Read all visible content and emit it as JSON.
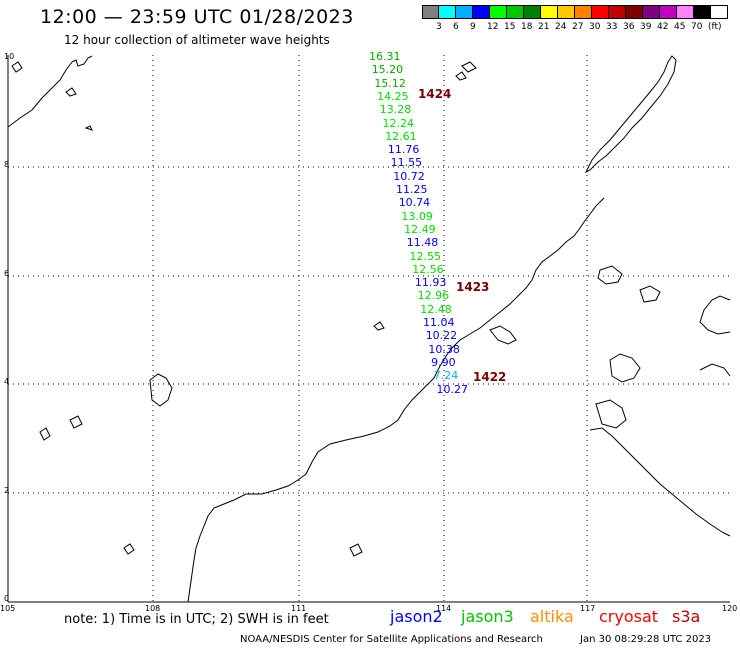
{
  "header": {
    "title": "12:00 — 23:59 UTC 01/28/2023",
    "subtitle": "12 hour collection of altimeter wave heights"
  },
  "color_scale": {
    "colors": [
      "#808080",
      "#00ffff",
      "#00b0ff",
      "#0000ff",
      "#00ff00",
      "#00c800",
      "#008000",
      "#ffff00",
      "#ffc800",
      "#ff8000",
      "#ff0000",
      "#c00000",
      "#800000",
      "#800080",
      "#c000c0",
      "#ff80ff",
      "#000000"
    ],
    "labels": [
      "3",
      "6",
      "9",
      "12",
      "15",
      "18",
      "21",
      "24",
      "27",
      "30",
      "33",
      "36",
      "39",
      "42",
      "45",
      "70",
      "(ft)"
    ]
  },
  "axes": {
    "x_labels": [
      "105",
      "108",
      "111",
      "114",
      "117",
      "120"
    ],
    "y_labels": [
      "10",
      "8",
      "6",
      "4",
      "2",
      "0"
    ]
  },
  "track": {
    "values": [
      {
        "v": "16.31",
        "c": "#00b000"
      },
      {
        "v": "15.20",
        "c": "#00b000"
      },
      {
        "v": "15.12",
        "c": "#00b000"
      },
      {
        "v": "14.25",
        "c": "#00e000"
      },
      {
        "v": "13.28",
        "c": "#00e000"
      },
      {
        "v": "12.24",
        "c": "#00e000"
      },
      {
        "v": "12.61",
        "c": "#00e000"
      },
      {
        "v": "11.76",
        "c": "#0000ff"
      },
      {
        "v": "11.55",
        "c": "#0000ff"
      },
      {
        "v": "10.72",
        "c": "#0000ff"
      },
      {
        "v": "11.25",
        "c": "#0000ff"
      },
      {
        "v": "10.74",
        "c": "#0000ff"
      },
      {
        "v": "13.09",
        "c": "#00e000"
      },
      {
        "v": "12.49",
        "c": "#00e000"
      },
      {
        "v": "11.48",
        "c": "#0000ff"
      },
      {
        "v": "12.55",
        "c": "#00e000"
      },
      {
        "v": "12.56",
        "c": "#00e000"
      },
      {
        "v": "11.93",
        "c": "#0000ff"
      },
      {
        "v": "12.96",
        "c": "#00e000"
      },
      {
        "v": "12.48",
        "c": "#00e000"
      },
      {
        "v": "11.04",
        "c": "#0000ff"
      },
      {
        "v": "10.22",
        "c": "#0000ff"
      },
      {
        "v": "10.38",
        "c": "#0000ff"
      },
      {
        "v": "9.90",
        "c": "#0000ff"
      },
      {
        "v": "7.24",
        "c": "#00b0ff"
      },
      {
        "v": "10.27",
        "c": "#0000ff"
      }
    ],
    "time_tags": [
      "1424",
      "1423",
      "1422"
    ]
  },
  "footer": {
    "note": "note: 1) Time is in UTC; 2) SWH is in feet",
    "legend": [
      {
        "name": "jason2",
        "color": "#0000ff"
      },
      {
        "name": "jason3",
        "color": "#00c000"
      },
      {
        "name": "altika",
        "color": "#ff9000"
      },
      {
        "name": "cryosat",
        "color": "#ff0000"
      },
      {
        "name": "s3a",
        "color": "#c00000"
      }
    ],
    "credit": "NOAA/NESDIS Center for Satellite Applications and Research",
    "generated": "Jan 30 08:29:28 UTC 2023"
  }
}
